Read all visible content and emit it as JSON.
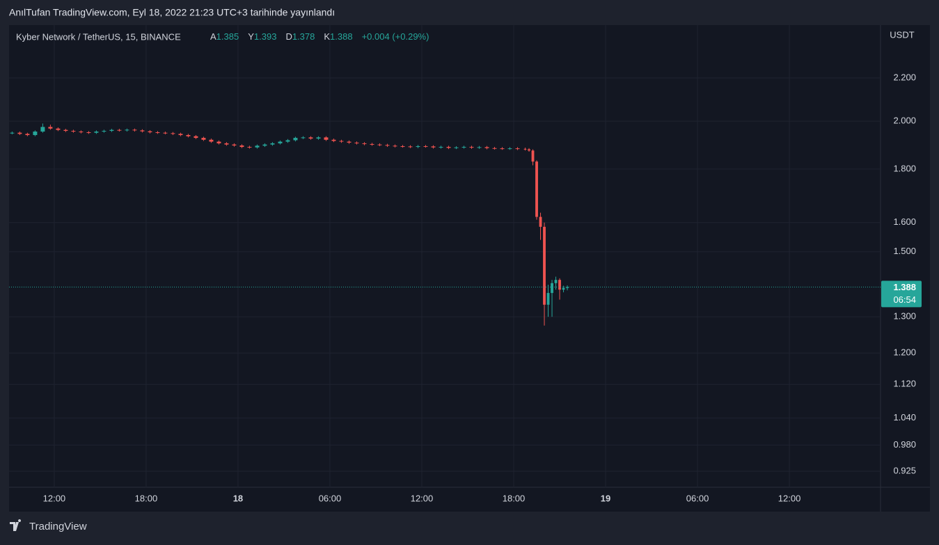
{
  "header": {
    "published": "AnılTufan TradingView.com, Eyl 18, 2022 21:23 UTC+3 tarihinde yayınlandı",
    "brand": "TradingView"
  },
  "chart_data": {
    "type": "candlestick",
    "symbol": "Kyber Network / TetherUS, 15, BINANCE",
    "legend": {
      "open_label": "A",
      "open": 1.385,
      "high_label": "Y",
      "high": 1.393,
      "low_label": "D",
      "low": 1.378,
      "close_label": "K",
      "close": 1.388,
      "change": "+0.004 (+0.29%)"
    },
    "y_axis_label": "USDT",
    "last_price": 1.388,
    "countdown": "06:54",
    "up_color": "#26a69a",
    "down_color": "#ef5350",
    "log_scale": true,
    "grid": true,
    "xlim": [
      9.05,
      65.95
    ],
    "ylim": [
      0.893,
      2.472
    ],
    "xticks": [
      {
        "value": 12,
        "label": "12:00"
      },
      {
        "value": 18,
        "label": "18:00"
      },
      {
        "value": 24,
        "label": "18"
      },
      {
        "value": 30,
        "label": "06:00"
      },
      {
        "value": 36,
        "label": "12:00"
      },
      {
        "value": 42,
        "label": "18:00"
      },
      {
        "value": 48,
        "label": "19"
      },
      {
        "value": 54,
        "label": "06:00"
      },
      {
        "value": 60,
        "label": "12:00"
      }
    ],
    "yticks": [
      {
        "value": 2.2,
        "label": "2.200"
      },
      {
        "value": 2.0,
        "label": "2.000"
      },
      {
        "value": 1.8,
        "label": "1.800"
      },
      {
        "value": 1.6,
        "label": "1.600"
      },
      {
        "value": 1.5,
        "label": "1.500"
      },
      {
        "value": 1.3,
        "label": "1.300"
      },
      {
        "value": 1.2,
        "label": "1.200"
      },
      {
        "value": 1.12,
        "label": "1.120"
      },
      {
        "value": 1.04,
        "label": "1.040"
      },
      {
        "value": 0.98,
        "label": "0.980"
      },
      {
        "value": 0.925,
        "label": "0.925"
      }
    ],
    "x": [
      9.25,
      9.75,
      10.25,
      10.75,
      11.25,
      11.75,
      12.25,
      12.75,
      13.25,
      13.75,
      14.25,
      14.75,
      15.25,
      15.75,
      16.25,
      16.75,
      17.25,
      17.75,
      18.25,
      18.75,
      19.25,
      19.75,
      20.25,
      20.75,
      21.25,
      21.75,
      22.25,
      22.75,
      23.25,
      23.75,
      24.25,
      24.75,
      25.25,
      25.75,
      26.25,
      26.75,
      27.25,
      27.75,
      28.25,
      28.75,
      29.25,
      29.75,
      30.25,
      30.75,
      31.25,
      31.75,
      32.25,
      32.75,
      33.25,
      33.75,
      34.25,
      34.75,
      35.25,
      35.75,
      36.25,
      36.75,
      37.25,
      37.75,
      38.25,
      38.75,
      39.25,
      39.75,
      40.25,
      40.75,
      41.25,
      41.75,
      42.25,
      42.75,
      43.0,
      43.25,
      43.5,
      43.75,
      44.0,
      44.25,
      44.5,
      44.75,
      45.0,
      45.25,
      45.5
    ],
    "open": [
      1.948,
      1.95,
      1.945,
      1.94,
      1.955,
      1.975,
      1.968,
      1.962,
      1.958,
      1.955,
      1.952,
      1.95,
      1.955,
      1.958,
      1.962,
      1.96,
      1.963,
      1.96,
      1.956,
      1.952,
      1.95,
      1.948,
      1.945,
      1.94,
      1.935,
      1.928,
      1.92,
      1.912,
      1.905,
      1.9,
      1.896,
      1.89,
      1.888,
      1.895,
      1.9,
      1.905,
      1.912,
      1.918,
      1.928,
      1.93,
      1.925,
      1.93,
      1.92,
      1.915,
      1.912,
      1.908,
      1.905,
      1.902,
      1.9,
      1.898,
      1.895,
      1.893,
      1.892,
      1.89,
      1.893,
      1.892,
      1.888,
      1.89,
      1.886,
      1.888,
      1.89,
      1.887,
      1.889,
      1.885,
      1.884,
      1.883,
      1.884,
      1.882,
      1.88,
      1.875,
      1.83,
      1.62,
      1.585,
      1.335,
      1.37,
      1.4,
      1.41,
      1.38,
      1.385
    ],
    "high": [
      1.955,
      1.955,
      1.95,
      1.96,
      1.99,
      1.985,
      1.973,
      1.967,
      1.963,
      1.96,
      1.957,
      1.96,
      1.963,
      1.967,
      1.967,
      1.968,
      1.968,
      1.965,
      1.961,
      1.957,
      1.955,
      1.953,
      1.95,
      1.945,
      1.94,
      1.933,
      1.925,
      1.917,
      1.91,
      1.905,
      1.901,
      1.895,
      1.9,
      1.905,
      1.91,
      1.917,
      1.923,
      1.933,
      1.935,
      1.935,
      1.935,
      1.935,
      1.925,
      1.92,
      1.917,
      1.913,
      1.91,
      1.907,
      1.905,
      1.903,
      1.9,
      1.898,
      1.897,
      1.898,
      1.898,
      1.897,
      1.895,
      1.895,
      1.893,
      1.895,
      1.895,
      1.894,
      1.894,
      1.89,
      1.889,
      1.889,
      1.889,
      1.887,
      1.885,
      1.88,
      1.835,
      1.635,
      1.6,
      1.395,
      1.41,
      1.42,
      1.415,
      1.392,
      1.393
    ],
    "low": [
      1.943,
      1.94,
      1.935,
      1.935,
      1.95,
      1.963,
      1.957,
      1.953,
      1.95,
      1.947,
      1.945,
      1.945,
      1.95,
      1.953,
      1.955,
      1.955,
      1.955,
      1.951,
      1.947,
      1.945,
      1.943,
      1.94,
      1.935,
      1.93,
      1.923,
      1.915,
      1.907,
      1.9,
      1.895,
      1.891,
      1.885,
      1.883,
      1.883,
      1.89,
      1.895,
      1.9,
      1.907,
      1.913,
      1.923,
      1.92,
      1.92,
      1.915,
      1.91,
      1.907,
      1.903,
      1.9,
      1.897,
      1.895,
      1.893,
      1.89,
      1.888,
      1.887,
      1.885,
      1.885,
      1.887,
      1.883,
      1.883,
      1.881,
      1.881,
      1.883,
      1.882,
      1.882,
      1.88,
      1.879,
      1.878,
      1.878,
      1.877,
      1.875,
      1.87,
      1.815,
      1.61,
      1.54,
      1.275,
      1.3,
      1.3,
      1.38,
      1.35,
      1.372,
      1.378
    ],
    "close": [
      1.95,
      1.945,
      1.94,
      1.955,
      1.975,
      1.968,
      1.962,
      1.958,
      1.955,
      1.952,
      1.95,
      1.955,
      1.958,
      1.962,
      1.96,
      1.963,
      1.96,
      1.956,
      1.952,
      1.95,
      1.948,
      1.945,
      1.94,
      1.935,
      1.928,
      1.92,
      1.912,
      1.905,
      1.9,
      1.896,
      1.89,
      1.888,
      1.895,
      1.9,
      1.905,
      1.912,
      1.918,
      1.928,
      1.93,
      1.925,
      1.93,
      1.92,
      1.915,
      1.912,
      1.908,
      1.905,
      1.902,
      1.9,
      1.898,
      1.895,
      1.893,
      1.892,
      1.89,
      1.893,
      1.892,
      1.888,
      1.89,
      1.886,
      1.888,
      1.89,
      1.887,
      1.889,
      1.885,
      1.884,
      1.883,
      1.884,
      1.882,
      1.88,
      1.875,
      1.83,
      1.62,
      1.585,
      1.335,
      1.37,
      1.4,
      1.41,
      1.38,
      1.385,
      1.388
    ]
  }
}
